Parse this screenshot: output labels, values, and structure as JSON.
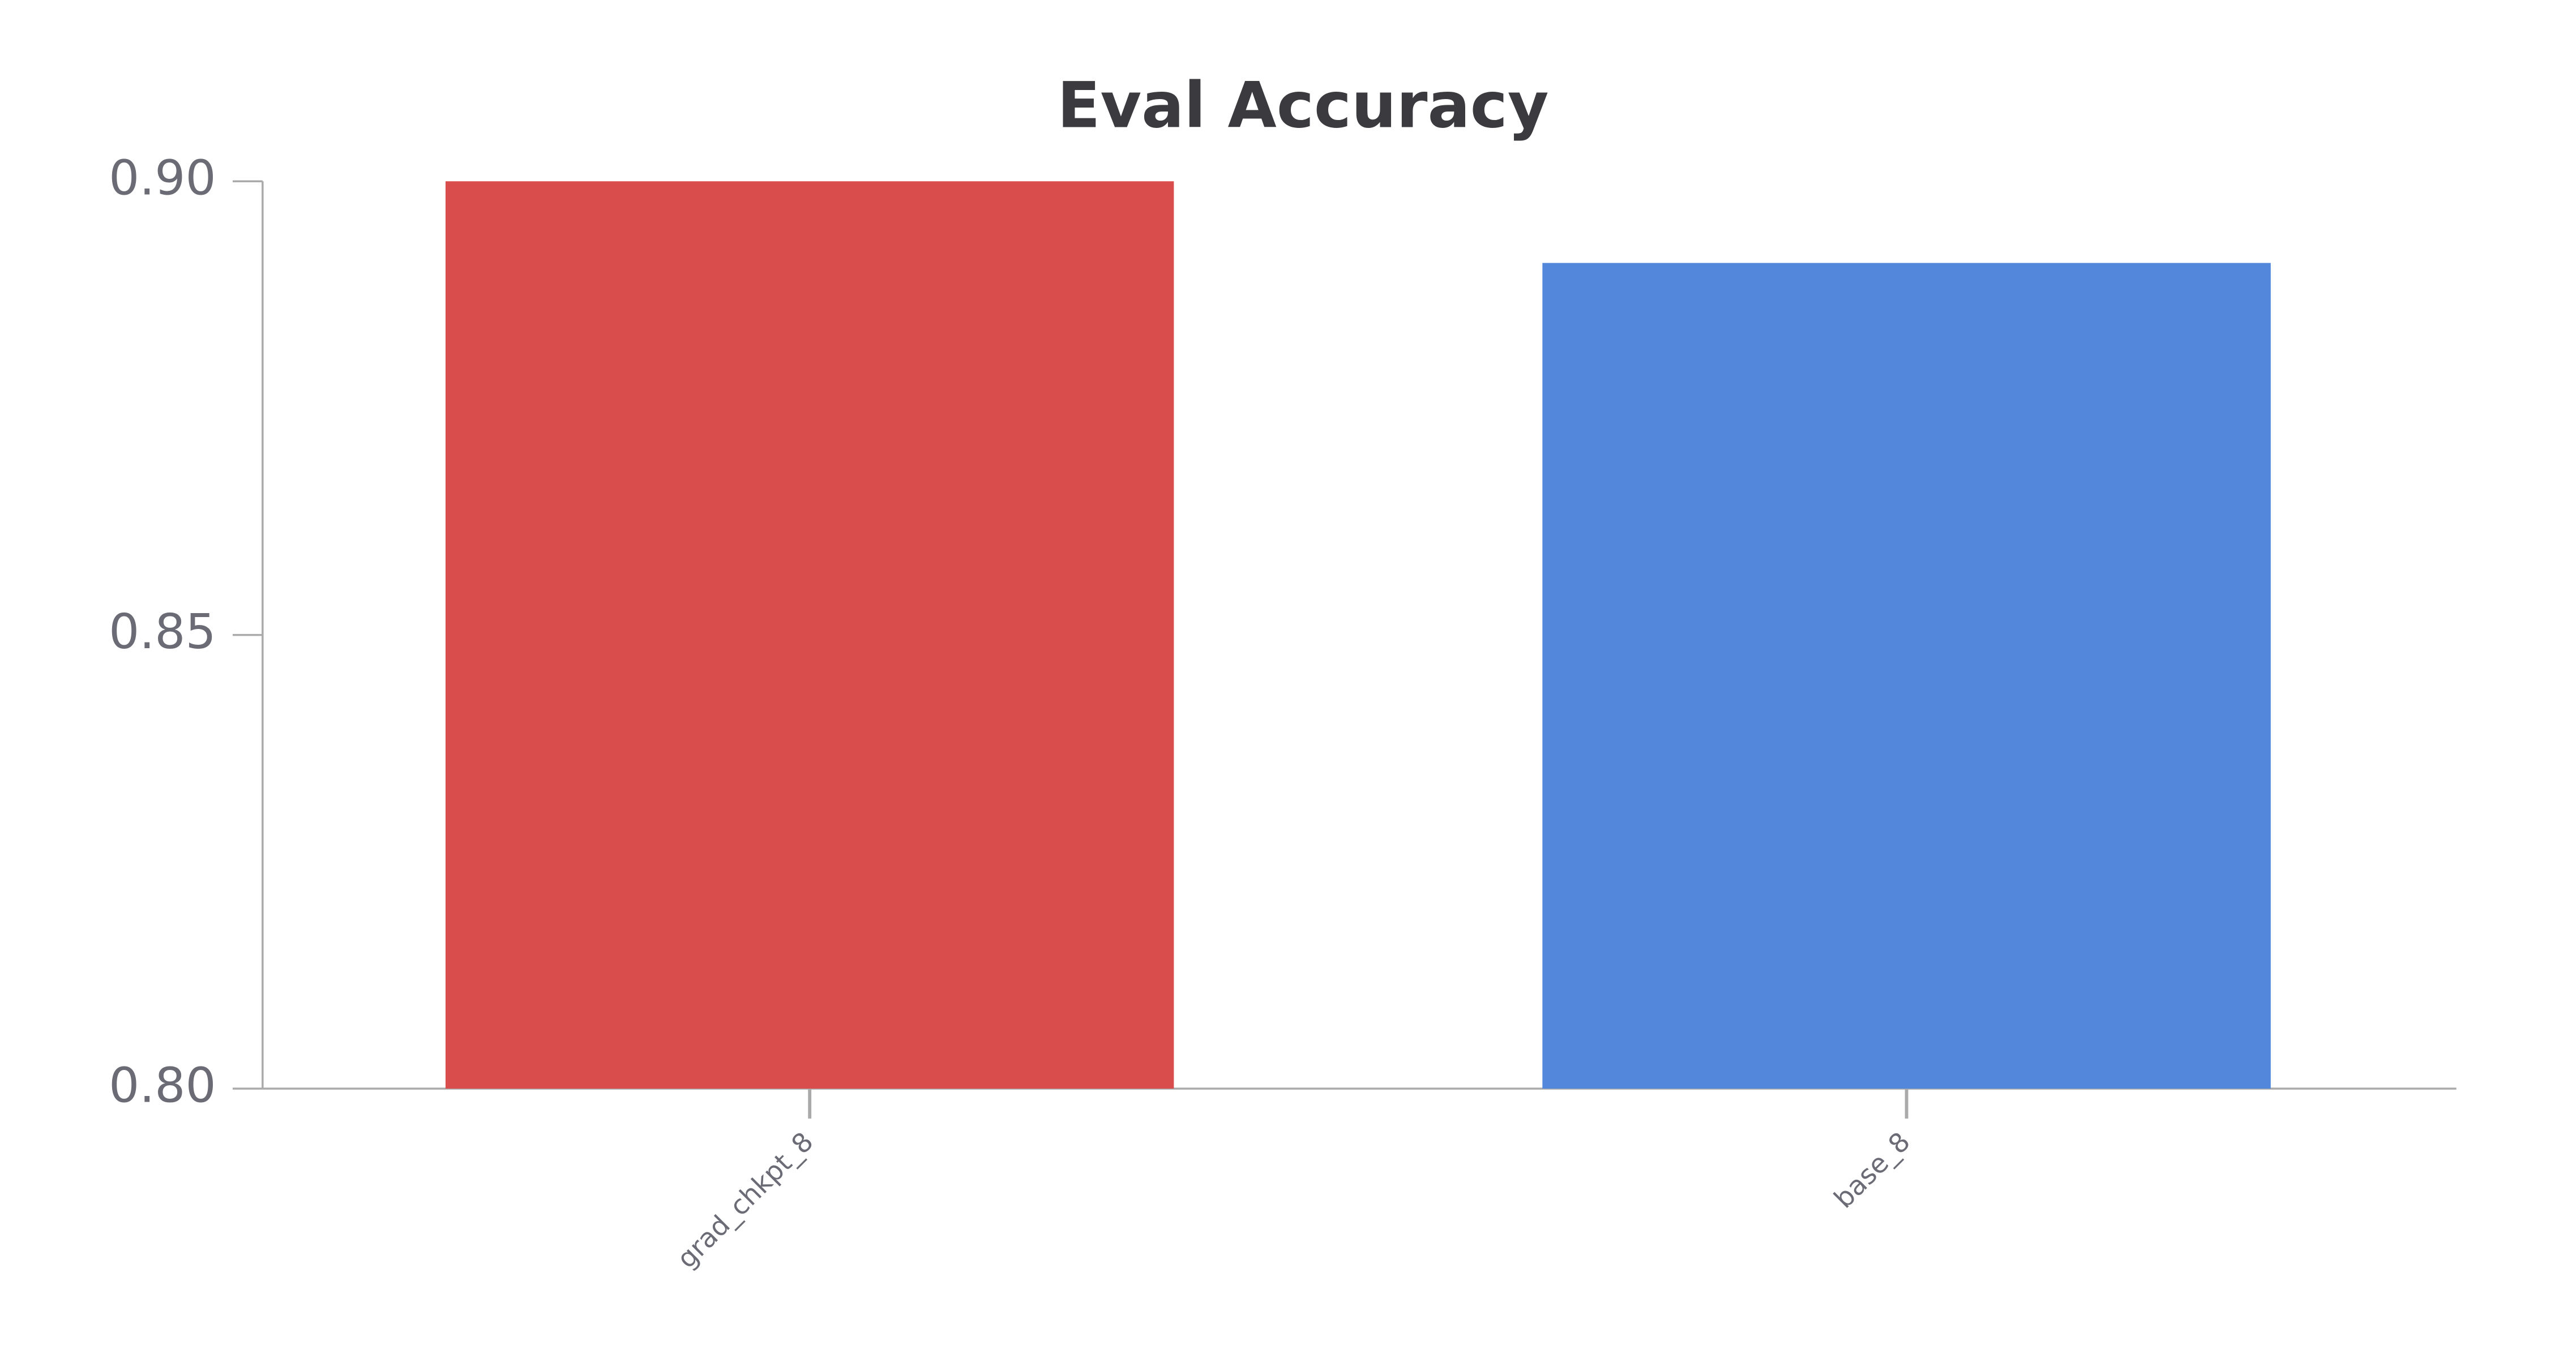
{
  "chart_data": {
    "type": "bar",
    "title": "Eval Accuracy",
    "categories": [
      "grad_chkpt_8",
      "base_8"
    ],
    "values": [
      0.9,
      0.891
    ],
    "colors": [
      "#d94e4c",
      "#5287dc"
    ],
    "ylim": [
      0.8,
      0.9
    ],
    "yticks": [
      {
        "value": 0.8,
        "label": "0.80"
      },
      {
        "value": 0.85,
        "label": "0.85"
      },
      {
        "value": 0.9,
        "label": "0.90"
      }
    ]
  }
}
